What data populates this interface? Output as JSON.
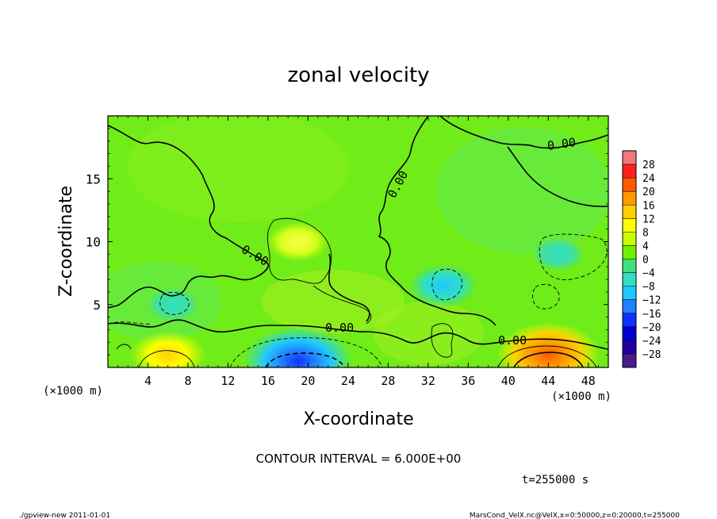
{
  "chart_data": {
    "type": "heatmap",
    "title": "zonal velocity",
    "xlabel": "X-coordinate",
    "ylabel": "Z-coordinate",
    "x_unit": "(×1000 m)",
    "z_unit": "(×1000 m)",
    "xlim": [
      0,
      50
    ],
    "ylim": [
      0,
      20
    ],
    "x_ticks": [
      4,
      8,
      12,
      16,
      20,
      24,
      28,
      32,
      36,
      40,
      44,
      48
    ],
    "y_ticks": [
      5,
      10,
      15
    ],
    "contour_interval_text": "CONTOUR INTERVAL = 6.000E+00",
    "time_text": "t=255000 s",
    "contour_labels": [
      "0.00",
      "0.00",
      "0.00",
      "0.00",
      "0.00"
    ],
    "colorbar": {
      "levels": [
        28,
        24,
        20,
        16,
        12,
        8,
        4,
        0,
        -4,
        -8,
        -12,
        -16,
        -20,
        -24,
        -28
      ],
      "level_labels": [
        "28",
        "24",
        "20",
        "16",
        "12",
        "8",
        "4",
        "0",
        "−4",
        "−8",
        "−12",
        "−16",
        "−20",
        "−24",
        "−28"
      ],
      "colors": [
        "#f07878",
        "#ff2020",
        "#ff5a00",
        "#ff9a00",
        "#ffd000",
        "#ffff00",
        "#c8ff00",
        "#70f000",
        "#40e080",
        "#30e0c0",
        "#20c8ff",
        "#2080ff",
        "#1030ff",
        "#0000d0",
        "#2000a0",
        "#4a1a8a"
      ]
    },
    "features": [
      {
        "kind": "positive",
        "x": 44,
        "z": 1.0,
        "value": 18
      },
      {
        "kind": "positive",
        "x": 6,
        "z": 1.0,
        "value": 12
      },
      {
        "kind": "positive",
        "x": 19,
        "z": 10,
        "value": 8
      },
      {
        "kind": "negative",
        "x": 19,
        "z": 0.5,
        "value": -20
      },
      {
        "kind": "negative",
        "x": 33.5,
        "z": 6.5,
        "value": -10
      },
      {
        "kind": "negative",
        "x": 45,
        "z": 9,
        "value": -6
      },
      {
        "kind": "negative",
        "x": 6.5,
        "z": 5,
        "value": -6
      }
    ]
  },
  "footer": {
    "left": "./gpview-new   2011-01-01",
    "right": "MarsCond_VelX.nc@VelX,x=0:50000,z=0:20000,t=255000"
  }
}
